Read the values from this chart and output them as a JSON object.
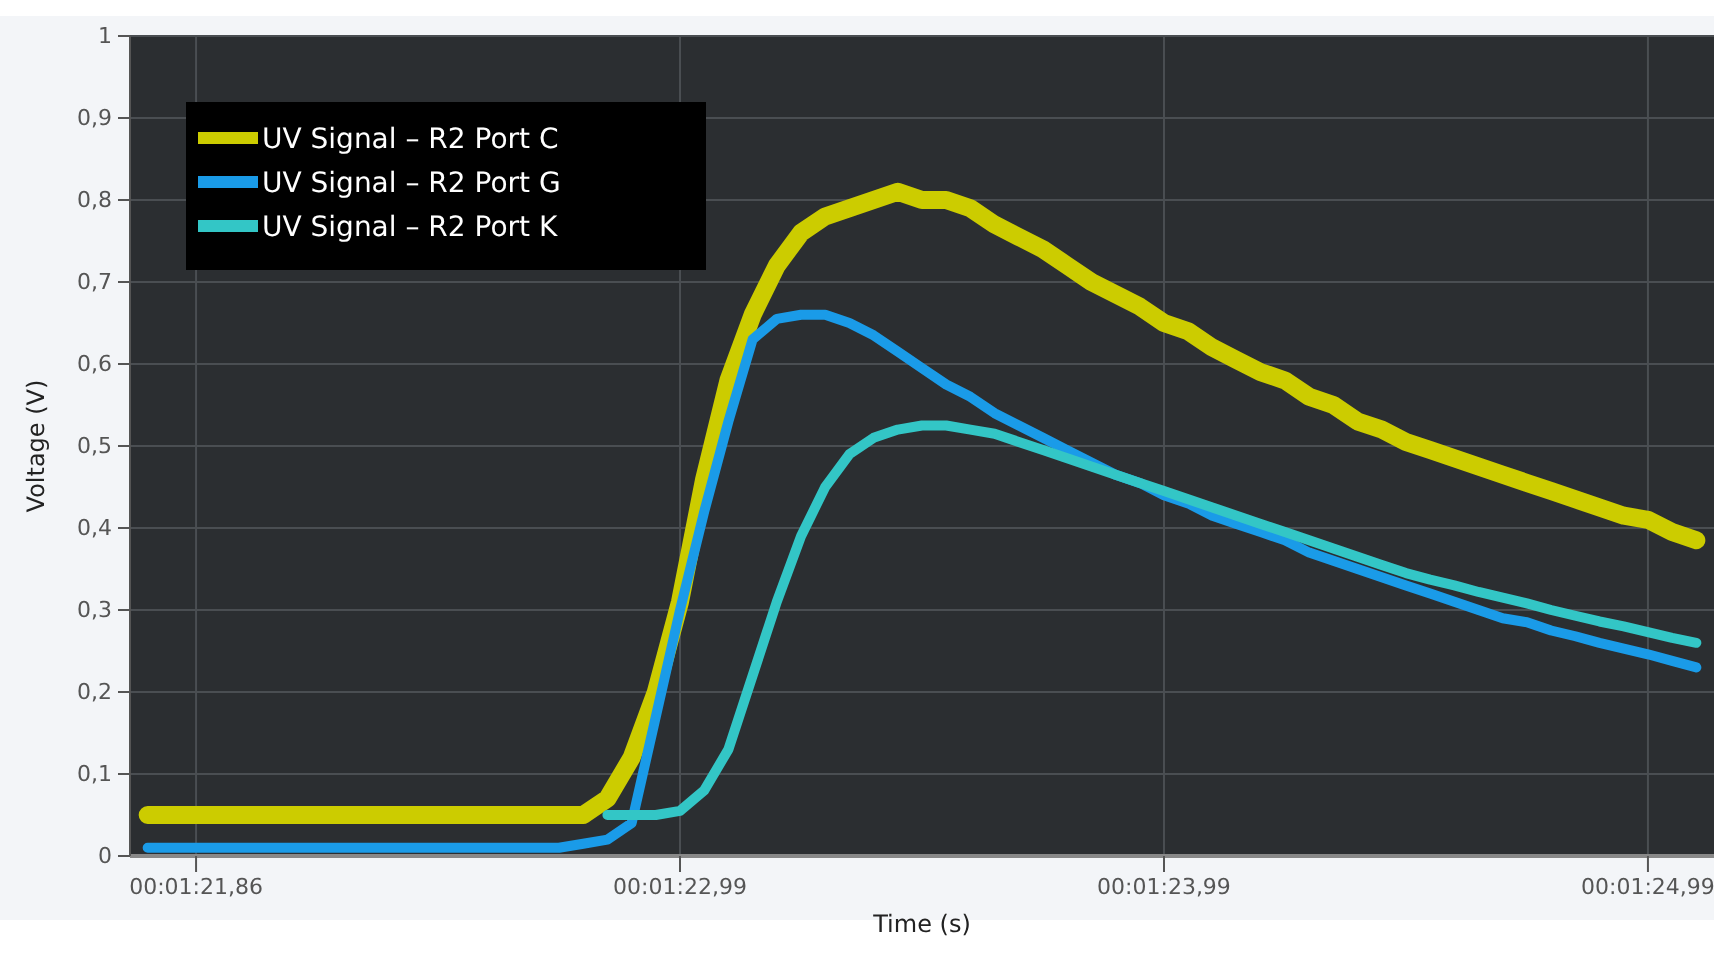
{
  "chart_data": {
    "type": "line",
    "xlabel": "Time (s)",
    "ylabel": "Voltage (V)",
    "grid": true,
    "legend": "top left",
    "line_style": "solid",
    "categories": [
      null,
      null,
      "00:01:21,86",
      null,
      null,
      null,
      null,
      null,
      null,
      null,
      null,
      null,
      null,
      null,
      null,
      null,
      null,
      null,
      null,
      null,
      null,
      null,
      "00:01:22,99",
      null,
      null,
      null,
      null,
      null,
      null,
      null,
      null,
      null,
      null,
      null,
      null,
      null,
      null,
      null,
      null,
      null,
      null,
      null,
      "00:01:23,99",
      null,
      null,
      null,
      null,
      null,
      null,
      null,
      null,
      null,
      null,
      null,
      null,
      null,
      null,
      null,
      null,
      null,
      null,
      null,
      "00:01:24,99",
      null,
      null
    ],
    "ylim": [
      0,
      1
    ],
    "yticks": [
      0,
      {
        "value": 0.1,
        "label": "0,1"
      },
      {
        "value": 0.2,
        "label": "0,2"
      },
      {
        "value": 0.3,
        "label": "0,3"
      },
      {
        "value": 0.4,
        "label": "0,4"
      },
      {
        "value": 0.5,
        "label": "0,5"
      },
      {
        "value": 0.6,
        "label": "0,6"
      },
      {
        "value": 0.7,
        "label": "0,7"
      },
      {
        "value": 0.8,
        "label": "0,8"
      },
      {
        "value": 0.9,
        "label": "0,9"
      },
      1
    ],
    "series": [
      {
        "name": "UV Signal – R2 Port C",
        "color": "#cccc00",
        "values": [
          0.05,
          0.05,
          0.05,
          0.05,
          0.05,
          0.05,
          0.05,
          0.05,
          0.05,
          0.05,
          0.05,
          0.05,
          0.05,
          0.05,
          0.05,
          0.05,
          0.05,
          0.05,
          0.05,
          0.07,
          0.12,
          0.2,
          0.31,
          0.46,
          0.58,
          0.66,
          0.72,
          0.76,
          0.78,
          0.79,
          0.8,
          0.81,
          0.8,
          0.8,
          0.79,
          0.77,
          0.755,
          0.74,
          0.72,
          0.7,
          0.685,
          0.67,
          0.65,
          0.64,
          0.62,
          0.605,
          0.59,
          0.58,
          0.56,
          0.55,
          0.53,
          0.52,
          0.505,
          0.495,
          0.485,
          0.475,
          0.465,
          0.455,
          0.445,
          0.435,
          0.425,
          0.415,
          0.41,
          0.395,
          0.385
        ]
      },
      {
        "name": "UV Signal – R2 Port G",
        "color": "#1a9be8",
        "values": [
          0.01,
          0.01,
          0.01,
          0.01,
          0.01,
          0.01,
          0.01,
          0.01,
          0.01,
          0.01,
          0.01,
          0.01,
          0.01,
          0.01,
          0.01,
          0.01,
          0.01,
          0.01,
          0.015,
          0.02,
          0.04,
          0.17,
          0.3,
          0.42,
          0.53,
          0.63,
          0.655,
          0.66,
          0.66,
          0.65,
          0.635,
          0.615,
          0.595,
          0.575,
          0.56,
          0.54,
          0.525,
          0.51,
          0.495,
          0.48,
          0.465,
          0.455,
          0.44,
          0.43,
          0.415,
          0.405,
          0.395,
          0.385,
          0.37,
          0.36,
          0.35,
          0.34,
          0.33,
          0.32,
          0.31,
          0.3,
          0.29,
          0.285,
          0.275,
          0.268,
          0.26,
          0.253,
          0.246,
          0.238,
          0.23
        ]
      },
      {
        "name": "UV Signal – R2 Port K",
        "color": "#33c6c6",
        "values": [
          null,
          null,
          null,
          null,
          null,
          null,
          null,
          null,
          null,
          null,
          null,
          null,
          null,
          null,
          null,
          null,
          null,
          null,
          null,
          0.05,
          0.05,
          0.05,
          0.055,
          0.08,
          0.13,
          0.22,
          0.31,
          0.39,
          0.45,
          0.49,
          0.51,
          0.52,
          0.525,
          0.525,
          0.52,
          0.515,
          0.505,
          0.495,
          0.485,
          0.475,
          0.465,
          0.455,
          0.445,
          0.435,
          0.425,
          0.415,
          0.405,
          0.395,
          0.385,
          0.375,
          0.365,
          0.355,
          0.345,
          0.337,
          0.33,
          0.322,
          0.315,
          0.308,
          0.3,
          0.293,
          0.286,
          0.28,
          0.273,
          0.266,
          0.26
        ]
      }
    ]
  }
}
